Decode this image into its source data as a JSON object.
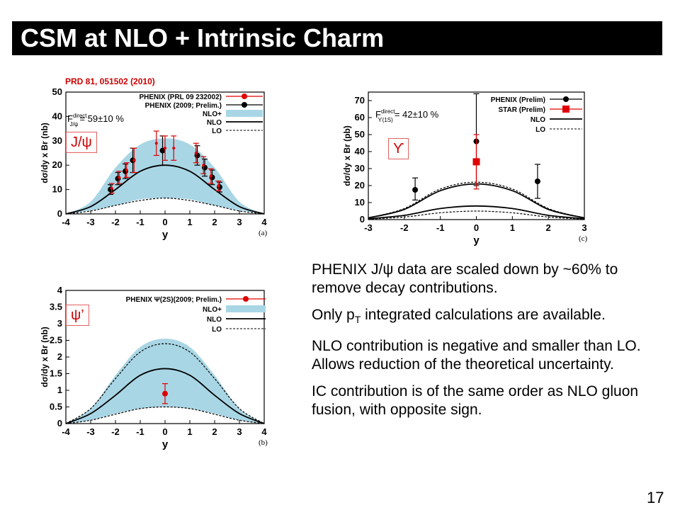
{
  "slide": {
    "title": "CSM at NLO + Intrinsic Charm",
    "reference": "PRD 81, 051502 (2010)",
    "page_number": "17",
    "bullets": [
      "PHENIX J/ψ data are scaled down by ~60% to remove decay contributions.",
      "integrated calculations are available.",
      "NLO contribution is negative and smaller than LO. Allows reduction of the theoretical uncertainty.",
      "IC contribution is of the same order as NLO gluon fusion, with opposite sign."
    ],
    "bullet2_prefix": "Only p",
    "bullet2_sub": "T",
    "colors": {
      "band": "#a9d6e5",
      "data_red": "#e00000",
      "data_black": "#000000",
      "title_bg": "#000000"
    }
  },
  "chart_data": [
    {
      "type": "line",
      "panel": "(a)",
      "tag": "J/ψ",
      "xlabel": "y",
      "ylabel": "dσ/dy x Br (nb)",
      "xlim": [
        -4,
        4
      ],
      "ylim": [
        0,
        50
      ],
      "xticks": [
        -4,
        -3,
        -2,
        -1,
        0,
        1,
        2,
        3,
        4
      ],
      "yticks": [
        0,
        10,
        20,
        30,
        40,
        50
      ],
      "legend": [
        "PHENIX (PRL 09 232002)",
        "PHENIX (2009; Prelim.)",
        "NLO+",
        "NLO",
        "LO"
      ],
      "annotation_main": "F",
      "annotation_sup": "direct",
      "annotation_sub": "J/ψ",
      "annotation_value": "= 59±10 %",
      "series": [
        {
          "name": "PHENIX (2009; Prelim.)",
          "style": "points",
          "color": "#000000",
          "x": [
            -2.2,
            -1.9,
            -1.6,
            -1.3,
            -0.1,
            1.3,
            1.6,
            1.9,
            2.2
          ],
          "y": [
            10,
            14.5,
            17.5,
            22,
            26,
            24,
            19,
            15,
            11
          ],
          "err": [
            2,
            2.5,
            3,
            5,
            6,
            4,
            3.5,
            3,
            2
          ]
        },
        {
          "name": "PHENIX (PRL 09 232002)",
          "style": "points",
          "color": "#e00000",
          "x": [
            -2.15,
            -1.85,
            -1.55,
            -1.25,
            -0.35,
            0,
            0.35,
            1.25,
            1.55,
            1.85,
            2.15
          ],
          "y": [
            10.5,
            15,
            18,
            22,
            29,
            27,
            27,
            25,
            20,
            15.5,
            11.5
          ],
          "err": [
            2,
            2.5,
            3,
            5,
            5,
            5,
            5,
            4,
            3.5,
            3,
            2
          ]
        },
        {
          "name": "NLO+ band",
          "style": "band",
          "x": [
            -4,
            -3,
            -2,
            -1,
            0,
            1,
            2,
            3,
            4
          ],
          "low": [
            0,
            1.5,
            3.5,
            6,
            6.5,
            6,
            3.5,
            1.5,
            0
          ],
          "high": [
            0,
            5,
            19,
            28.5,
            31,
            28.5,
            19,
            5,
            0
          ]
        },
        {
          "name": "NLO",
          "style": "line",
          "x": [
            -4,
            -3,
            -2,
            -1,
            0,
            1,
            2,
            3,
            4
          ],
          "y": [
            0,
            3,
            10,
            17.5,
            20,
            17.5,
            10,
            3,
            0
          ]
        },
        {
          "name": "LO",
          "style": "dashed",
          "x": [
            -4,
            -3,
            -2,
            -1,
            0,
            1,
            2,
            3,
            4
          ],
          "y": [
            0,
            1.2,
            3.5,
            5.5,
            6.5,
            5.5,
            3.5,
            1.2,
            0
          ]
        }
      ]
    },
    {
      "type": "line",
      "panel": "(c)",
      "tag": "ϒ",
      "xlabel": "y",
      "ylabel": "dσ/dy x Br (pb)",
      "xlim": [
        -3,
        3
      ],
      "ylim": [
        0,
        75
      ],
      "xticks": [
        -3,
        -2,
        -1,
        0,
        1,
        2,
        3
      ],
      "yticks": [
        0,
        10,
        20,
        30,
        40,
        50,
        60,
        70
      ],
      "legend": [
        "PHENIX (Prelim)",
        "STAR (Prelim)",
        "NLO",
        "LO"
      ],
      "annotation_main": "F",
      "annotation_sup": "direct",
      "annotation_sub": "ϒ(1S)",
      "annotation_value": "= 42±10 %",
      "series": [
        {
          "name": "PHENIX (Prelim)",
          "style": "points",
          "color": "#000000",
          "x": [
            -1.7,
            0,
            1.7
          ],
          "y": [
            17.5,
            46,
            22.5
          ],
          "err_low": [
            6,
            26,
            10
          ],
          "err_high": [
            7,
            28,
            10
          ]
        },
        {
          "name": "STAR (Prelim)",
          "style": "squares",
          "color": "#e00000",
          "x": [
            0
          ],
          "y": [
            34
          ],
          "err_low": [
            16
          ],
          "err_high": [
            16
          ]
        },
        {
          "name": "NLO",
          "style": "line",
          "x": [
            -3,
            -2,
            -1,
            0,
            1,
            2,
            3
          ],
          "y": [
            1,
            6,
            17,
            21,
            17,
            6,
            1
          ]
        },
        {
          "name": "NLO",
          "style": "line",
          "x": [
            -3,
            -2,
            -1,
            0,
            1,
            2,
            3
          ],
          "y": [
            0.5,
            2.5,
            6.5,
            8,
            6.5,
            2.5,
            0.5
          ]
        },
        {
          "name": "LO",
          "style": "dashed",
          "x": [
            -3,
            -2,
            -1,
            0,
            1,
            2,
            3
          ],
          "y": [
            1,
            6.5,
            18,
            22,
            18,
            6.5,
            1
          ]
        },
        {
          "name": "LO",
          "style": "dashed",
          "x": [
            -3,
            -2,
            -1,
            0,
            1,
            2,
            3
          ],
          "y": [
            0.3,
            1.5,
            4,
            5,
            4,
            1.5,
            0.3
          ]
        }
      ]
    },
    {
      "type": "line",
      "panel": "(b)",
      "tag": "ψ’",
      "xlabel": "y",
      "ylabel": "dσ/dy x Br (nb)",
      "xlim": [
        -4,
        4
      ],
      "ylim": [
        0,
        4
      ],
      "xticks": [
        -4,
        -3,
        -2,
        -1,
        0,
        1,
        2,
        3,
        4
      ],
      "yticks": [
        0,
        0.5,
        1,
        1.5,
        2,
        2.5,
        3,
        3.5,
        4
      ],
      "ytick_labels": [
        "0",
        "0.5",
        "1",
        "1.5",
        "2",
        "2.5",
        "3",
        "3.5",
        "4"
      ],
      "legend": [
        "PHENIX Ψ(2S)(2009; Prelim.)",
        "NLO+",
        "NLO",
        "LO"
      ],
      "series": [
        {
          "name": "PHENIX Ψ(2S)(2009; Prelim.)",
          "style": "points",
          "color": "#e00000",
          "x": [
            0
          ],
          "y": [
            0.9
          ],
          "err": [
            0.3
          ]
        },
        {
          "name": "NLO+ band",
          "style": "band",
          "x": [
            -4,
            -3,
            -2,
            -1,
            0,
            1,
            2,
            3,
            4
          ],
          "low": [
            0,
            0.1,
            0.3,
            0.45,
            0.5,
            0.45,
            0.3,
            0.1,
            0
          ],
          "high": [
            0,
            0.45,
            1.45,
            2.3,
            2.55,
            2.3,
            1.45,
            0.45,
            0
          ]
        },
        {
          "name": "NLO",
          "style": "line",
          "x": [
            -4,
            -3,
            -2,
            -1,
            0,
            1,
            2,
            3,
            4
          ],
          "y": [
            0,
            0.3,
            0.85,
            1.45,
            1.65,
            1.45,
            0.85,
            0.3,
            0
          ]
        },
        {
          "name": "NLO+",
          "style": "dashed",
          "x": [
            -4,
            -3,
            -2,
            -1,
            0,
            1,
            2,
            3,
            4
          ],
          "y": [
            0,
            0.45,
            1.35,
            2.15,
            2.4,
            2.15,
            1.35,
            0.45,
            0
          ]
        },
        {
          "name": "LO",
          "style": "dashed",
          "x": [
            -4,
            -3,
            -2,
            -1,
            0,
            1,
            2,
            3,
            4
          ],
          "y": [
            0,
            0.1,
            0.28,
            0.45,
            0.5,
            0.45,
            0.28,
            0.1,
            0
          ]
        }
      ]
    }
  ]
}
